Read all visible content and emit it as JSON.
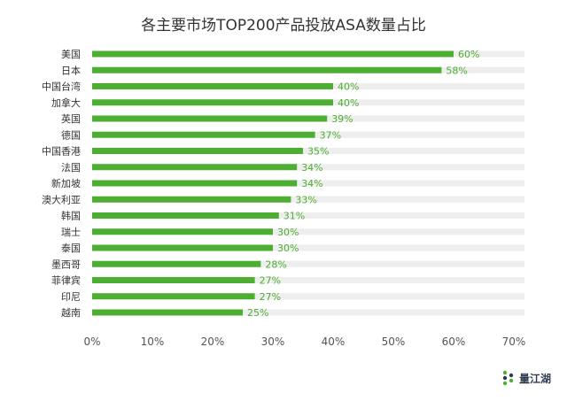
{
  "chart_data": {
    "type": "bar",
    "orientation": "horizontal",
    "title": "各主要市场TOP200产品投放ASA数量占比",
    "categories": [
      "美国",
      "日本",
      "中国台湾",
      "加拿大",
      "英国",
      "德国",
      "中国香港",
      "法国",
      "新加坡",
      "澳大利亚",
      "韩国",
      "瑞士",
      "泰国",
      "墨西哥",
      "菲律宾",
      "印尼",
      "越南"
    ],
    "values": [
      60,
      58,
      40,
      40,
      39,
      37,
      35,
      34,
      34,
      33,
      31,
      30,
      30,
      28,
      27,
      27,
      25
    ],
    "value_labels": [
      "60%",
      "58%",
      "40%",
      "40%",
      "39%",
      "37%",
      "35%",
      "34%",
      "34%",
      "33%",
      "31%",
      "30%",
      "30%",
      "28%",
      "27%",
      "27%",
      "25%"
    ],
    "xlim": [
      0,
      70
    ],
    "xticks": [
      "0%",
      "10%",
      "20%",
      "30%",
      "40%",
      "50%",
      "60%",
      "70%"
    ],
    "grid": false,
    "legend": "none",
    "colors": {
      "bar": "#4daf32",
      "track": "#eeeeee",
      "label": "#4daf32",
      "category": "#333333",
      "tick": "#555555"
    }
  },
  "watermark": {
    "text": "量江湖",
    "icon": "quantjianghu-logo-icon"
  }
}
